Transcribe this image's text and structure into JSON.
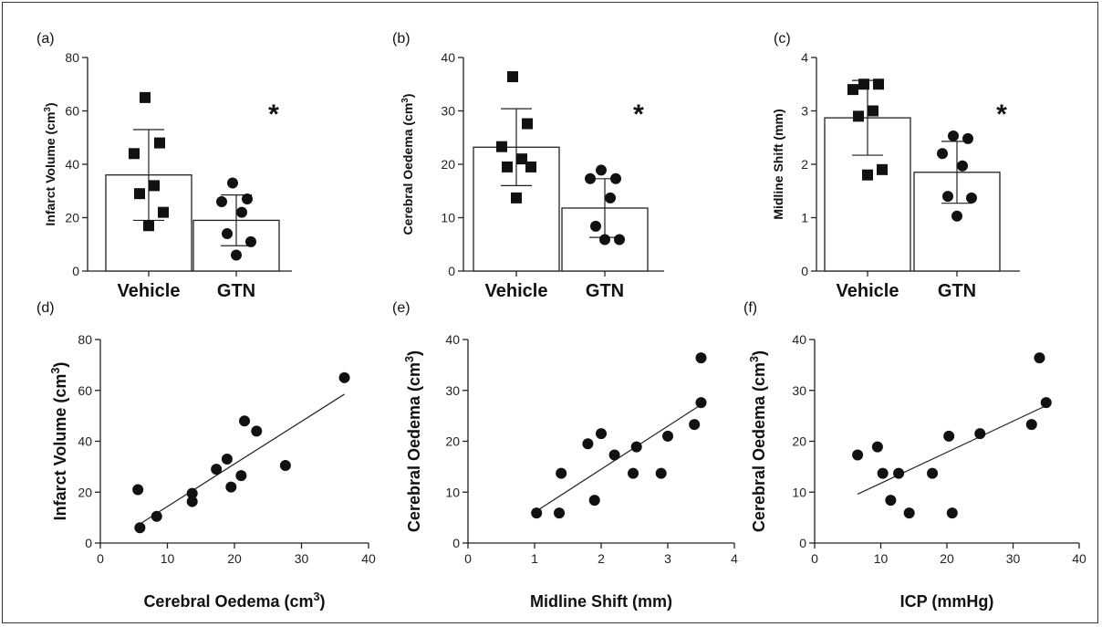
{
  "chart_data": [
    {
      "panel": "(a)",
      "type": "bar",
      "categories": [
        "Vehicle",
        "GTN"
      ],
      "means": [
        36,
        19
      ],
      "sd": [
        17,
        9.5
      ],
      "points": [
        [
          65,
          48,
          44,
          32,
          29,
          22,
          17
        ],
        [
          33,
          27,
          26,
          22,
          14,
          11,
          6
        ]
      ],
      "point_markers": [
        "square",
        "circle"
      ],
      "ylabel": "Infarct Volume (cm3)",
      "ylim": [
        0,
        80
      ],
      "yticks": [
        0,
        20,
        40,
        60,
        80
      ],
      "significance": "*"
    },
    {
      "panel": "(b)",
      "type": "bar",
      "categories": [
        "Vehicle",
        "GTN"
      ],
      "means": [
        23.2,
        11.8
      ],
      "sd": [
        7.2,
        5.5
      ],
      "points": [
        [
          36.4,
          27.6,
          23.3,
          21.0,
          19.5,
          19.5,
          13.7
        ],
        [
          18.9,
          17.3,
          17.3,
          13.7,
          8.4,
          5.9,
          5.9
        ]
      ],
      "point_markers": [
        "square",
        "circle"
      ],
      "ylabel": "Cerebral Oedema (cm3)",
      "ylim": [
        0,
        40
      ],
      "yticks": [
        0,
        10,
        20,
        30,
        40
      ],
      "significance": "*"
    },
    {
      "panel": "(c)",
      "type": "bar",
      "categories": [
        "Vehicle",
        "GTN"
      ],
      "means": [
        2.87,
        1.85
      ],
      "sd": [
        0.7,
        0.58
      ],
      "points": [
        [
          3.5,
          3.5,
          3.4,
          3.0,
          2.9,
          1.9,
          1.8
        ],
        [
          2.53,
          2.48,
          2.2,
          1.97,
          1.4,
          1.37,
          1.03
        ]
      ],
      "point_markers": [
        "square",
        "circle"
      ],
      "ylabel": "Midline Shift (mm)",
      "ylim": [
        0,
        4
      ],
      "yticks": [
        0,
        1,
        2,
        3,
        4
      ],
      "significance": "*"
    },
    {
      "panel": "(d)",
      "type": "scatter",
      "xlabel": "Cerebral Oedema (cm3)",
      "ylabel": "Infarct Volume (cm3)",
      "xlim": [
        0,
        40
      ],
      "ylim": [
        0,
        80
      ],
      "xticks": [
        0,
        10,
        20,
        30,
        40
      ],
      "yticks": [
        0,
        20,
        40,
        60,
        80
      ],
      "points": [
        [
          5.6,
          21
        ],
        [
          5.9,
          6
        ],
        [
          8.4,
          10.5
        ],
        [
          13.7,
          19.5
        ],
        [
          13.7,
          16.3
        ],
        [
          17.3,
          29
        ],
        [
          18.9,
          33
        ],
        [
          19.5,
          22
        ],
        [
          21,
          26.5
        ],
        [
          21.5,
          48
        ],
        [
          23.3,
          44
        ],
        [
          27.6,
          30.5
        ],
        [
          36.4,
          65
        ]
      ],
      "fit_line": [
        [
          5.6,
          7
        ],
        [
          36.4,
          58.5
        ]
      ]
    },
    {
      "panel": "(e)",
      "type": "scatter",
      "xlabel": "Midline Shift (mm)",
      "ylabel": "Cerebral Oedema (cm3)",
      "xlim": [
        0,
        4
      ],
      "ylim": [
        0,
        40
      ],
      "xticks": [
        0,
        1,
        2,
        3,
        4
      ],
      "yticks": [
        0,
        10,
        20,
        30,
        40
      ],
      "points": [
        [
          1.03,
          5.9
        ],
        [
          1.37,
          5.9
        ],
        [
          1.4,
          13.7
        ],
        [
          1.8,
          19.5
        ],
        [
          1.9,
          8.4
        ],
        [
          2.0,
          21.5
        ],
        [
          2.2,
          17.3
        ],
        [
          2.48,
          13.7
        ],
        [
          2.53,
          18.9
        ],
        [
          2.9,
          13.7
        ],
        [
          3.0,
          21.0
        ],
        [
          3.4,
          23.3
        ],
        [
          3.5,
          27.6
        ],
        [
          3.5,
          36.4
        ]
      ],
      "fit_line": [
        [
          1.03,
          6.3
        ],
        [
          3.5,
          27.2
        ]
      ]
    },
    {
      "panel": "(f)",
      "type": "scatter",
      "xlabel": "ICP (mmHg)",
      "ylabel": "Cerebral Oedema (cm3)",
      "xlim": [
        0,
        40
      ],
      "ylim": [
        0,
        40
      ],
      "xticks": [
        0,
        10,
        20,
        30,
        40
      ],
      "yticks": [
        0,
        10,
        20,
        30,
        40
      ],
      "points": [
        [
          6.5,
          17.3
        ],
        [
          9.5,
          18.9
        ],
        [
          10.3,
          13.7
        ],
        [
          11.5,
          8.4
        ],
        [
          12.7,
          13.7
        ],
        [
          14.3,
          5.9
        ],
        [
          17.8,
          13.7
        ],
        [
          20.3,
          21.0
        ],
        [
          20.8,
          5.9
        ],
        [
          25,
          21.5
        ],
        [
          32.8,
          23.3
        ],
        [
          34,
          36.4
        ],
        [
          35,
          27.6
        ]
      ],
      "fit_line": [
        [
          6.5,
          9.6
        ],
        [
          35,
          27
        ]
      ]
    }
  ]
}
